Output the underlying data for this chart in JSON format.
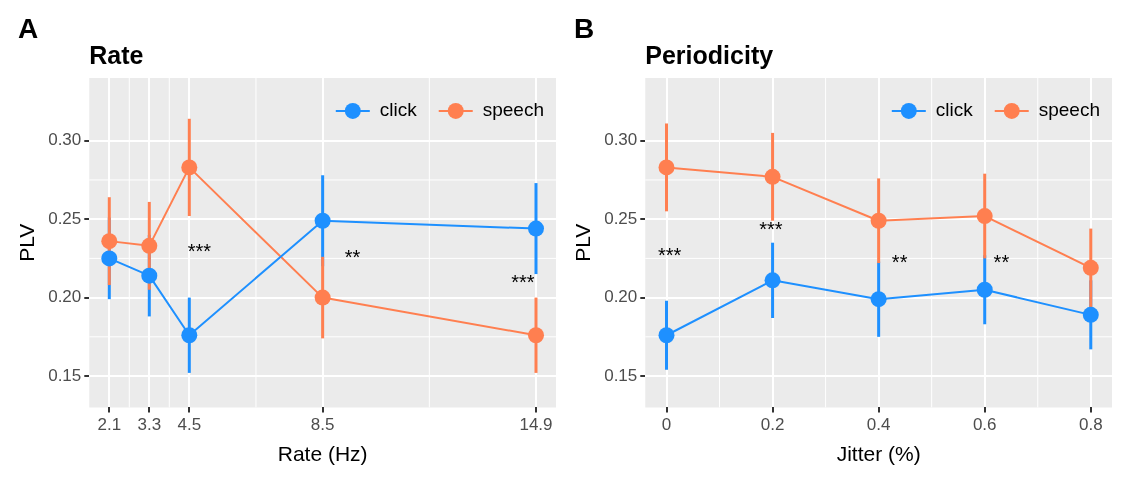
{
  "chart_data": [
    {
      "type": "line",
      "title": "Rate",
      "xlabel": "Rate (Hz)",
      "ylabel": "PLV",
      "x": [
        2.1,
        3.3,
        4.5,
        8.5,
        14.9
      ],
      "series": [
        {
          "name": "click",
          "color": "#1e90ff",
          "values": [
            0.225,
            0.214,
            0.176,
            0.249,
            0.244
          ],
          "errors": [
            0.026,
            0.026,
            0.024,
            0.029,
            0.029
          ]
        },
        {
          "name": "speech",
          "color": "#ff7f50",
          "values": [
            0.236,
            0.233,
            0.283,
            0.2,
            0.176
          ],
          "errors": [
            0.028,
            0.028,
            0.031,
            0.026,
            0.024
          ]
        }
      ],
      "xlim": [
        1.5,
        15.5
      ],
      "xticks": [
        2.1,
        3.3,
        4.5,
        8.5,
        14.9
      ],
      "ylim": [
        0.13,
        0.34
      ],
      "yticks": [
        {
          "value": 0.15,
          "label": "0.15"
        },
        {
          "value": 0.2,
          "label": "0.20"
        },
        {
          "value": 0.25,
          "label": "0.25"
        },
        {
          "value": 0.3,
          "label": "0.30"
        }
      ],
      "annotations": [
        "A",
        "***",
        "**",
        "***"
      ],
      "grid": true,
      "legend": "top right",
      "marker": "circle",
      "line_style": "solid"
    },
    {
      "type": "line",
      "title": "Periodicity",
      "xlabel": "Jitter (%)",
      "ylabel": "PLV",
      "x": [
        0,
        0.2,
        0.4,
        0.6,
        0.8
      ],
      "series": [
        {
          "name": "click",
          "color": "#1e90ff",
          "values": [
            0.176,
            0.211,
            0.199,
            0.205,
            0.189
          ],
          "errors": [
            0.022,
            0.024,
            0.024,
            0.022,
            0.022
          ]
        },
        {
          "name": "speech",
          "color": "#ff7f50",
          "values": [
            0.283,
            0.277,
            0.249,
            0.252,
            0.219
          ],
          "errors": [
            0.028,
            0.028,
            0.027,
            0.027,
            0.025
          ]
        }
      ],
      "xlim": [
        -0.04,
        0.84
      ],
      "xticks": [
        0,
        0.2,
        0.4,
        0.6,
        0.8
      ],
      "ylim": [
        0.13,
        0.34
      ],
      "yticks": [
        {
          "value": 0.15,
          "label": "0.15"
        },
        {
          "value": 0.2,
          "label": "0.20"
        },
        {
          "value": 0.25,
          "label": "0.25"
        },
        {
          "value": 0.3,
          "label": "0.30"
        }
      ],
      "annotations": [
        "B",
        "***",
        "***",
        "**",
        "**"
      ],
      "grid": true,
      "legend": "top right",
      "marker": "circle",
      "line_style": "solid"
    }
  ]
}
